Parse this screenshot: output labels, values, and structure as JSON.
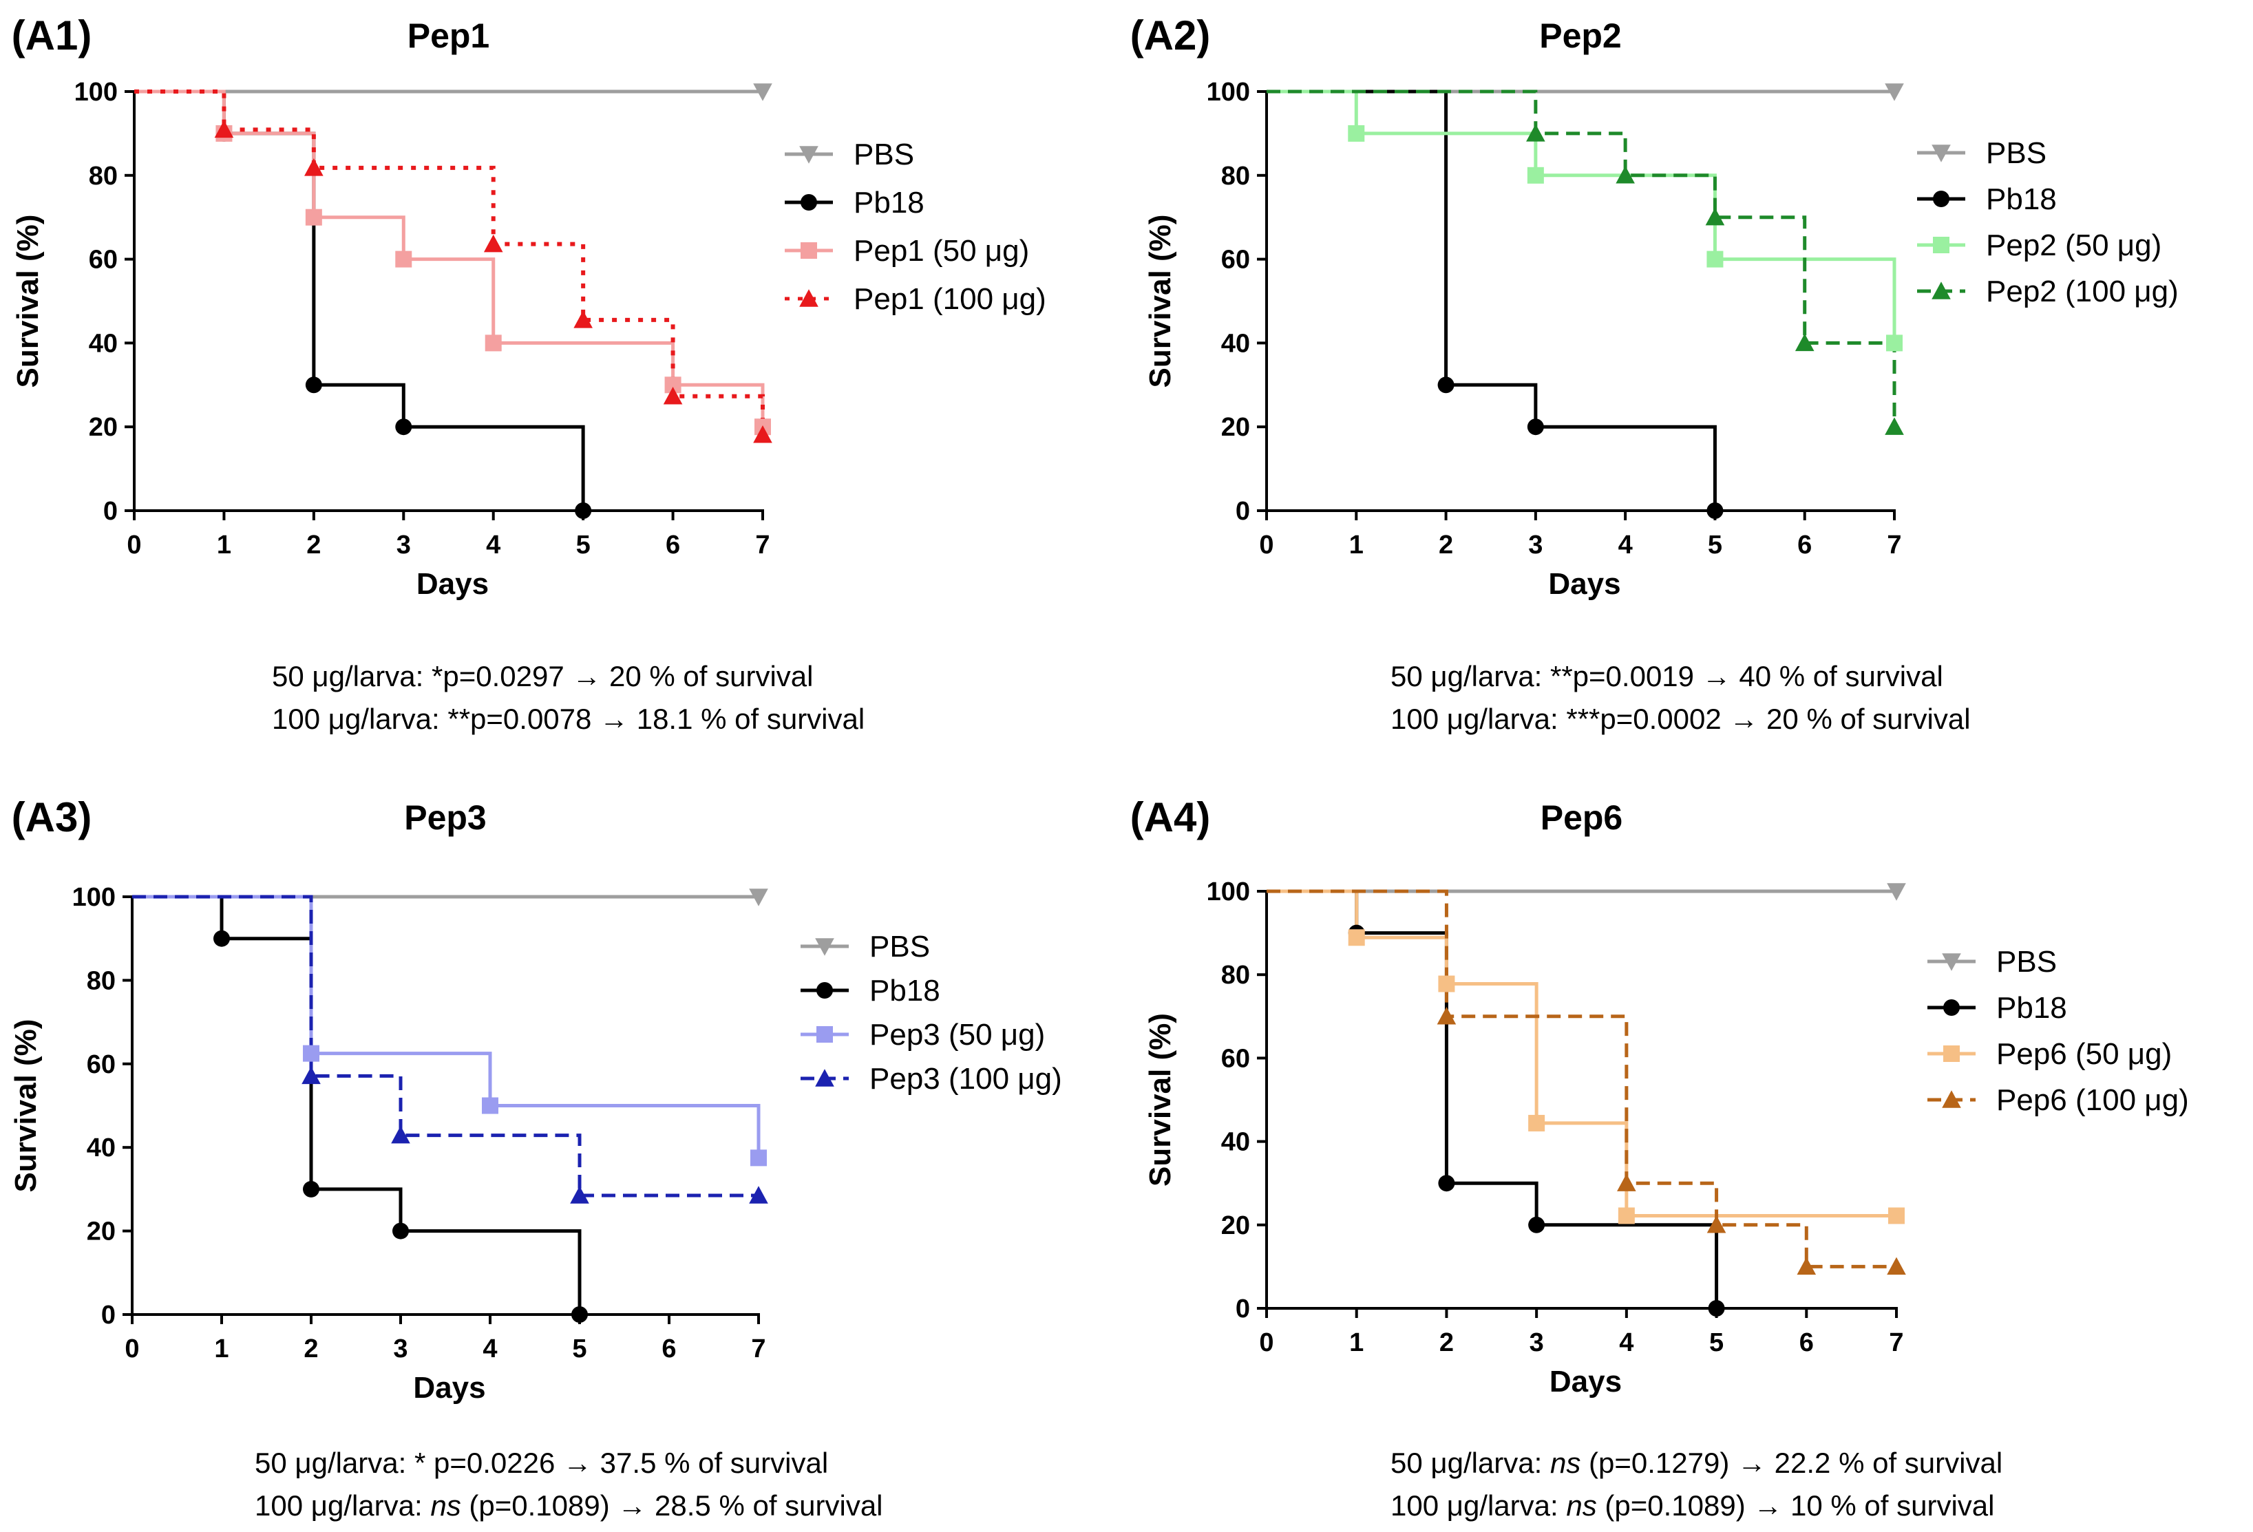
{
  "figure": {
    "panels": [
      {
        "label": "(A1)",
        "stats": [
          [
            {
              "t": "50 μg/larva: *p=0.0297 → 20 % of survival"
            }
          ],
          [
            {
              "t": "100 μg/larva: **p=0.0078 → 18.1 % of survival"
            }
          ]
        ]
      },
      {
        "label": "(A2)",
        "stats": [
          [
            {
              "t": "50 μg/larva: **p=0.0019 → 40 % of survival"
            }
          ],
          [
            {
              "t": "100 μg/larva: ***p=0.0002 → 20 % of survival"
            }
          ]
        ]
      },
      {
        "label": "(A3)",
        "stats": [
          [
            {
              "t": "50 μg/larva: * p=0.0226 → 37.5 % of survival"
            }
          ],
          [
            {
              "t": "100 μg/larva: "
            },
            {
              "t": "ns",
              "italic": true
            },
            {
              "t": " (p=0.1089) → 28.5 % of survival"
            }
          ]
        ]
      },
      {
        "label": "(A4)",
        "stats": [
          [
            {
              "t": "50 μg/larva: "
            },
            {
              "t": "ns",
              "italic": true
            },
            {
              "t": " (p=0.1279) → 22.2 % of survival"
            }
          ],
          [
            {
              "t": "100 μg/larva: "
            },
            {
              "t": "ns",
              "italic": true
            },
            {
              "t": " (p=0.1089) → 10 % of survival"
            }
          ]
        ]
      }
    ]
  },
  "chart_data": [
    {
      "type": "line",
      "title": "Pep1",
      "xlabel": "Days",
      "ylabel": "Survival (%)",
      "xlim": [
        0,
        7
      ],
      "ylim": [
        0,
        100
      ],
      "x_ticks": [
        0,
        1,
        2,
        3,
        4,
        5,
        6,
        7
      ],
      "y_ticks": [
        0,
        20,
        40,
        60,
        80,
        100
      ],
      "legend_position": "right",
      "series": [
        {
          "name": "PBS",
          "color": "#9e9e9e",
          "dash": "solid",
          "marker": "triangle-down",
          "steps": [
            [
              0,
              100
            ],
            [
              7,
              100
            ]
          ],
          "markers": [
            [
              7,
              100
            ]
          ]
        },
        {
          "name": "Pb18",
          "color": "#000000",
          "dash": "solid",
          "marker": "circle",
          "steps": [
            [
              0,
              100
            ],
            [
              1,
              90
            ],
            [
              2,
              30
            ],
            [
              3,
              20
            ],
            [
              5,
              0
            ]
          ],
          "markers": [
            [
              1,
              90
            ],
            [
              2,
              30
            ],
            [
              3,
              20
            ],
            [
              5,
              0
            ]
          ]
        },
        {
          "name": "Pep1 (50 μg)",
          "color": "#f4a0a0",
          "dash": "solid",
          "marker": "square",
          "steps": [
            [
              0,
              100
            ],
            [
              1,
              90
            ],
            [
              2,
              70
            ],
            [
              3,
              60
            ],
            [
              4,
              40
            ],
            [
              6,
              30
            ],
            [
              7,
              20
            ]
          ],
          "markers": [
            [
              1,
              90
            ],
            [
              2,
              70
            ],
            [
              3,
              60
            ],
            [
              4,
              40
            ],
            [
              6,
              30
            ],
            [
              7,
              20
            ]
          ]
        },
        {
          "name": "Pep1 (100 μg)",
          "color": "#e8191c",
          "dash": "dotted",
          "marker": "triangle-up",
          "steps": [
            [
              0,
              100
            ],
            [
              1,
              90.9
            ],
            [
              2,
              81.8
            ],
            [
              4,
              63.6
            ],
            [
              5,
              45.5
            ],
            [
              6,
              27.3
            ],
            [
              7,
              18.1
            ]
          ],
          "markers": [
            [
              1,
              90.9
            ],
            [
              2,
              81.8
            ],
            [
              4,
              63.6
            ],
            [
              5,
              45.5
            ],
            [
              6,
              27.3
            ],
            [
              7,
              18.1
            ]
          ]
        }
      ]
    },
    {
      "type": "line",
      "title": "Pep2",
      "xlabel": "Days",
      "ylabel": "Survival (%)",
      "xlim": [
        0,
        7
      ],
      "ylim": [
        0,
        100
      ],
      "x_ticks": [
        0,
        1,
        2,
        3,
        4,
        5,
        6,
        7
      ],
      "y_ticks": [
        0,
        20,
        40,
        60,
        80,
        100
      ],
      "legend_position": "right",
      "series": [
        {
          "name": "PBS",
          "color": "#9e9e9e",
          "dash": "solid",
          "marker": "triangle-down",
          "steps": [
            [
              0,
              100
            ],
            [
              7,
              100
            ]
          ],
          "markers": [
            [
              7,
              100
            ]
          ]
        },
        {
          "name": "Pb18",
          "color": "#000000",
          "dash": "solid",
          "marker": "circle",
          "steps": [
            [
              0,
              100
            ],
            [
              2,
              30
            ],
            [
              3,
              20
            ],
            [
              5,
              0
            ]
          ],
          "markers": [
            [
              2,
              30
            ],
            [
              3,
              20
            ],
            [
              5,
              0
            ]
          ]
        },
        {
          "name": "Pep2 (50 μg)",
          "color": "#9af0a0",
          "dash": "solid",
          "marker": "square",
          "steps": [
            [
              0,
              100
            ],
            [
              1,
              90
            ],
            [
              3,
              80
            ],
            [
              5,
              60
            ],
            [
              7,
              40
            ]
          ],
          "markers": [
            [
              1,
              90
            ],
            [
              3,
              80
            ],
            [
              5,
              60
            ],
            [
              7,
              40
            ]
          ]
        },
        {
          "name": "Pep2 (100 μg)",
          "color": "#1e8a2a",
          "dash": "dashed",
          "marker": "triangle-up",
          "steps": [
            [
              0,
              100
            ],
            [
              3,
              90
            ],
            [
              4,
              80
            ],
            [
              5,
              70
            ],
            [
              6,
              40
            ],
            [
              7,
              20
            ]
          ],
          "markers": [
            [
              3,
              90
            ],
            [
              4,
              80
            ],
            [
              5,
              70
            ],
            [
              6,
              40
            ],
            [
              7,
              20
            ]
          ]
        }
      ]
    },
    {
      "type": "line",
      "title": "Pep3",
      "xlabel": "Days",
      "ylabel": "Survival (%)",
      "xlim": [
        0,
        7
      ],
      "ylim": [
        0,
        100
      ],
      "x_ticks": [
        0,
        1,
        2,
        3,
        4,
        5,
        6,
        7
      ],
      "y_ticks": [
        0,
        20,
        40,
        60,
        80,
        100
      ],
      "legend_position": "right",
      "series": [
        {
          "name": "PBS",
          "color": "#9e9e9e",
          "dash": "solid",
          "marker": "triangle-down",
          "steps": [
            [
              0,
              100
            ],
            [
              7,
              100
            ]
          ],
          "markers": [
            [
              7,
              100
            ]
          ]
        },
        {
          "name": "Pb18",
          "color": "#000000",
          "dash": "solid",
          "marker": "circle",
          "steps": [
            [
              0,
              100
            ],
            [
              1,
              90
            ],
            [
              2,
              30
            ],
            [
              3,
              20
            ],
            [
              5,
              0
            ]
          ],
          "markers": [
            [
              1,
              90
            ],
            [
              2,
              30
            ],
            [
              3,
              20
            ],
            [
              5,
              0
            ]
          ]
        },
        {
          "name": "Pep3 (50 μg)",
          "color": "#9a9cf0",
          "dash": "solid",
          "marker": "square",
          "steps": [
            [
              0,
              100
            ],
            [
              2,
              62.5
            ],
            [
              4,
              50
            ],
            [
              7,
              37.5
            ]
          ],
          "markers": [
            [
              2,
              62.5
            ],
            [
              4,
              50
            ],
            [
              7,
              37.5
            ]
          ]
        },
        {
          "name": "Pep3 (100 μg)",
          "color": "#1b22b0",
          "dash": "dashed",
          "marker": "triangle-up",
          "steps": [
            [
              0,
              100
            ],
            [
              2,
              57.1
            ],
            [
              3,
              42.9
            ],
            [
              5,
              28.5
            ],
            [
              7,
              28.5
            ]
          ],
          "markers": [
            [
              2,
              57.1
            ],
            [
              3,
              42.9
            ],
            [
              5,
              28.5
            ],
            [
              7,
              28.5
            ]
          ]
        }
      ]
    },
    {
      "type": "line",
      "title": "Pep6",
      "xlabel": "Days",
      "ylabel": "Survival (%)",
      "xlim": [
        0,
        7
      ],
      "ylim": [
        0,
        100
      ],
      "x_ticks": [
        0,
        1,
        2,
        3,
        4,
        5,
        6,
        7
      ],
      "y_ticks": [
        0,
        20,
        40,
        60,
        80,
        100
      ],
      "legend_position": "right",
      "series": [
        {
          "name": "PBS",
          "color": "#9e9e9e",
          "dash": "solid",
          "marker": "triangle-down",
          "steps": [
            [
              0,
              100
            ],
            [
              7,
              100
            ]
          ],
          "markers": [
            [
              7,
              100
            ]
          ]
        },
        {
          "name": "Pb18",
          "color": "#000000",
          "dash": "solid",
          "marker": "circle",
          "steps": [
            [
              0,
              100
            ],
            [
              1,
              90
            ],
            [
              2,
              30
            ],
            [
              3,
              20
            ],
            [
              5,
              0
            ]
          ],
          "markers": [
            [
              1,
              90
            ],
            [
              2,
              30
            ],
            [
              3,
              20
            ],
            [
              5,
              0
            ]
          ]
        },
        {
          "name": "Pep6 (50 μg)",
          "color": "#f6bf85",
          "dash": "solid",
          "marker": "square",
          "steps": [
            [
              0,
              100
            ],
            [
              1,
              88.9
            ],
            [
              2,
              77.8
            ],
            [
              3,
              44.4
            ],
            [
              4,
              22.2
            ],
            [
              7,
              22.2
            ]
          ],
          "markers": [
            [
              1,
              88.9
            ],
            [
              2,
              77.8
            ],
            [
              3,
              44.4
            ],
            [
              4,
              22.2
            ],
            [
              7,
              22.2
            ]
          ]
        },
        {
          "name": "Pep6 (100 μg)",
          "color": "#b86518",
          "dash": "dashed",
          "marker": "triangle-up",
          "steps": [
            [
              0,
              100
            ],
            [
              2,
              70
            ],
            [
              4,
              30
            ],
            [
              5,
              20
            ],
            [
              6,
              10
            ],
            [
              7,
              10
            ]
          ],
          "markers": [
            [
              2,
              70
            ],
            [
              4,
              30
            ],
            [
              5,
              20
            ],
            [
              6,
              10
            ],
            [
              7,
              10
            ]
          ]
        }
      ]
    }
  ]
}
